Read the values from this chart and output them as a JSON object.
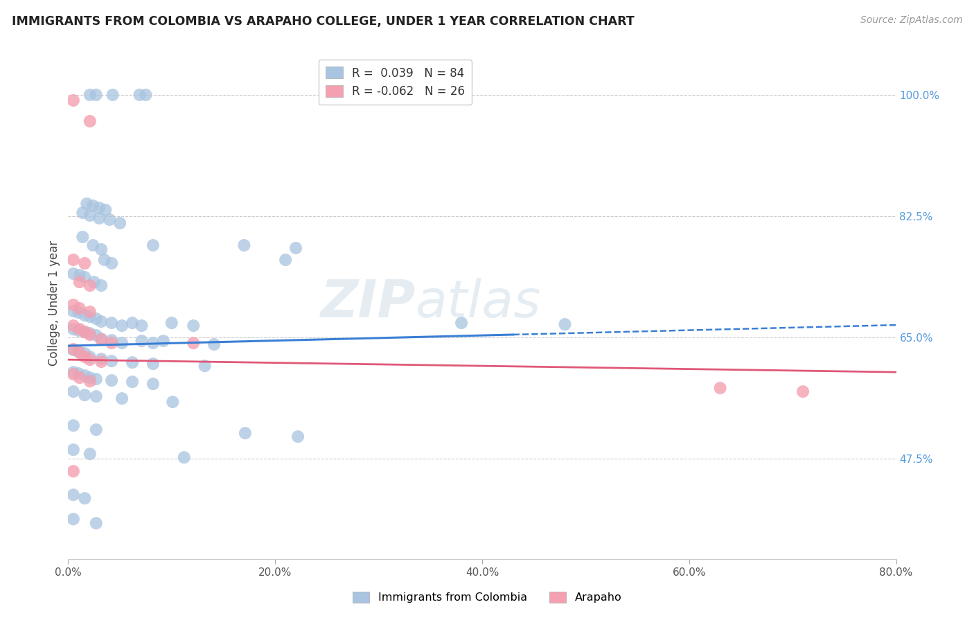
{
  "title": "IMMIGRANTS FROM COLOMBIA VS ARAPAHO COLLEGE, UNDER 1 YEAR CORRELATION CHART",
  "source": "Source: ZipAtlas.com",
  "xlabel_ticks": [
    "0.0%",
    "20.0%",
    "40.0%",
    "60.0%",
    "80.0%"
  ],
  "xlabel_tick_vals": [
    0.0,
    0.2,
    0.4,
    0.6,
    0.8
  ],
  "ylabel": "College, Under 1 year",
  "ylabel_ticks": [
    "47.5%",
    "65.0%",
    "82.5%",
    "100.0%"
  ],
  "ylabel_tick_vals": [
    0.475,
    0.65,
    0.825,
    1.0
  ],
  "xlim": [
    0.0,
    0.8
  ],
  "ylim": [
    0.33,
    1.07
  ],
  "blue_R": 0.039,
  "blue_N": 84,
  "pink_R": -0.062,
  "pink_N": 26,
  "blue_color": "#a8c4e0",
  "pink_color": "#f4a0b0",
  "blue_line_color": "#3a7fd5",
  "pink_line_color": "#e05878",
  "blue_line": [
    [
      0.0,
      0.638
    ],
    [
      0.8,
      0.668
    ]
  ],
  "pink_line": [
    [
      0.0,
      0.618
    ],
    [
      0.8,
      0.6
    ]
  ],
  "blue_scatter": [
    [
      0.021,
      1.0
    ],
    [
      0.027,
      1.0
    ],
    [
      0.043,
      1.0
    ],
    [
      0.069,
      1.0
    ],
    [
      0.075,
      1.0
    ],
    [
      0.018,
      0.843
    ],
    [
      0.024,
      0.84
    ],
    [
      0.03,
      0.837
    ],
    [
      0.036,
      0.834
    ],
    [
      0.014,
      0.83
    ],
    [
      0.021,
      0.826
    ],
    [
      0.03,
      0.822
    ],
    [
      0.04,
      0.82
    ],
    [
      0.05,
      0.815
    ],
    [
      0.014,
      0.795
    ],
    [
      0.024,
      0.783
    ],
    [
      0.032,
      0.777
    ],
    [
      0.082,
      0.783
    ],
    [
      0.17,
      0.783
    ],
    [
      0.22,
      0.779
    ],
    [
      0.21,
      0.762
    ],
    [
      0.035,
      0.762
    ],
    [
      0.042,
      0.757
    ],
    [
      0.005,
      0.742
    ],
    [
      0.011,
      0.74
    ],
    [
      0.016,
      0.737
    ],
    [
      0.025,
      0.73
    ],
    [
      0.032,
      0.725
    ],
    [
      0.005,
      0.688
    ],
    [
      0.01,
      0.686
    ],
    [
      0.016,
      0.682
    ],
    [
      0.021,
      0.68
    ],
    [
      0.027,
      0.677
    ],
    [
      0.032,
      0.673
    ],
    [
      0.042,
      0.671
    ],
    [
      0.052,
      0.667
    ],
    [
      0.062,
      0.671
    ],
    [
      0.071,
      0.667
    ],
    [
      0.1,
      0.671
    ],
    [
      0.121,
      0.667
    ],
    [
      0.38,
      0.671
    ],
    [
      0.48,
      0.669
    ],
    [
      0.005,
      0.662
    ],
    [
      0.01,
      0.66
    ],
    [
      0.016,
      0.658
    ],
    [
      0.021,
      0.656
    ],
    [
      0.027,
      0.653
    ],
    [
      0.032,
      0.648
    ],
    [
      0.042,
      0.646
    ],
    [
      0.052,
      0.642
    ],
    [
      0.071,
      0.645
    ],
    [
      0.082,
      0.642
    ],
    [
      0.092,
      0.645
    ],
    [
      0.141,
      0.64
    ],
    [
      0.005,
      0.632
    ],
    [
      0.01,
      0.63
    ],
    [
      0.016,
      0.627
    ],
    [
      0.021,
      0.622
    ],
    [
      0.032,
      0.619
    ],
    [
      0.042,
      0.616
    ],
    [
      0.062,
      0.614
    ],
    [
      0.082,
      0.612
    ],
    [
      0.132,
      0.609
    ],
    [
      0.005,
      0.6
    ],
    [
      0.01,
      0.598
    ],
    [
      0.016,
      0.595
    ],
    [
      0.021,
      0.592
    ],
    [
      0.027,
      0.59
    ],
    [
      0.042,
      0.588
    ],
    [
      0.062,
      0.586
    ],
    [
      0.082,
      0.583
    ],
    [
      0.005,
      0.572
    ],
    [
      0.016,
      0.567
    ],
    [
      0.027,
      0.565
    ],
    [
      0.052,
      0.562
    ],
    [
      0.101,
      0.557
    ],
    [
      0.005,
      0.523
    ],
    [
      0.027,
      0.517
    ],
    [
      0.171,
      0.512
    ],
    [
      0.222,
      0.507
    ],
    [
      0.005,
      0.488
    ],
    [
      0.021,
      0.482
    ],
    [
      0.112,
      0.477
    ],
    [
      0.005,
      0.423
    ],
    [
      0.016,
      0.418
    ],
    [
      0.005,
      0.388
    ],
    [
      0.027,
      0.382
    ]
  ],
  "pink_scatter": [
    [
      0.005,
      0.992
    ],
    [
      0.021,
      0.962
    ],
    [
      0.005,
      0.762
    ],
    [
      0.016,
      0.757
    ],
    [
      0.011,
      0.73
    ],
    [
      0.021,
      0.725
    ],
    [
      0.005,
      0.697
    ],
    [
      0.011,
      0.692
    ],
    [
      0.021,
      0.687
    ],
    [
      0.005,
      0.667
    ],
    [
      0.011,
      0.662
    ],
    [
      0.016,
      0.658
    ],
    [
      0.021,
      0.654
    ],
    [
      0.032,
      0.647
    ],
    [
      0.042,
      0.642
    ],
    [
      0.121,
      0.642
    ],
    [
      0.005,
      0.633
    ],
    [
      0.011,
      0.628
    ],
    [
      0.016,
      0.622
    ],
    [
      0.021,
      0.618
    ],
    [
      0.032,
      0.615
    ],
    [
      0.005,
      0.597
    ],
    [
      0.011,
      0.592
    ],
    [
      0.021,
      0.587
    ],
    [
      0.63,
      0.577
    ],
    [
      0.71,
      0.572
    ],
    [
      0.005,
      0.457
    ]
  ]
}
